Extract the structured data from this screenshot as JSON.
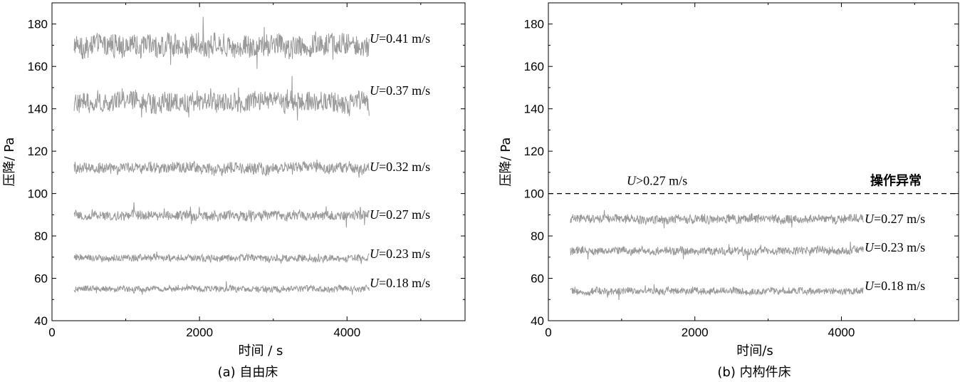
{
  "chart_data": [
    {
      "type": "line",
      "caption": "(a) 自由床",
      "xlabel": "时间 / s",
      "ylabel": "压降/ Pa",
      "xlim": [
        0,
        5600
      ],
      "ylim": [
        40,
        190
      ],
      "xticks": [
        "0",
        "2000",
        "4000"
      ],
      "yticks": [
        "40",
        "60",
        "80",
        "100",
        "120",
        "140",
        "160",
        "180"
      ],
      "series": [
        {
          "label": "=0.41 m/s",
          "x_start": 300,
          "x_end": 4300,
          "mean": 170,
          "noise": 5.0
        },
        {
          "label": "=0.37 m/s",
          "x_start": 300,
          "x_end": 4300,
          "mean": 143,
          "noise": 4.5
        },
        {
          "label": "=0.32 m/s",
          "x_start": 300,
          "x_end": 4300,
          "mean": 112,
          "noise": 2.5
        },
        {
          "label": "=0.27 m/s",
          "x_start": 300,
          "x_end": 4300,
          "mean": 89.5,
          "noise": 2.2
        },
        {
          "label": "=0.23 m/s",
          "x_start": 300,
          "x_end": 4300,
          "mean": 69.5,
          "noise": 1.6
        },
        {
          "label": "=0.18 m/s",
          "x_start": 300,
          "x_end": 4300,
          "mean": 55,
          "noise": 1.4
        }
      ],
      "velocity_symbol": "U"
    },
    {
      "type": "line",
      "caption": "(b) 内构件床",
      "xlabel": "时间/s",
      "ylabel": "压降/ Pa",
      "xlim": [
        0,
        5600
      ],
      "ylim": [
        40,
        190
      ],
      "xticks": [
        "0",
        "2000",
        "4000"
      ],
      "yticks": [
        "40",
        "60",
        "80",
        "100",
        "120",
        "140",
        "160",
        "180"
      ],
      "series": [
        {
          "label": "=0.27 m/s",
          "x_start": 300,
          "x_end": 4300,
          "mean": 88,
          "noise": 2.0
        },
        {
          "label": "=0.23 m/s",
          "x_start": 300,
          "x_end": 4300,
          "mean": 73,
          "noise": 1.8
        },
        {
          "label": "=0.18 m/s",
          "x_start": 300,
          "x_end": 4300,
          "mean": 54,
          "noise": 1.6
        }
      ],
      "velocity_symbol": "U",
      "reference_line": {
        "y": 100,
        "left_label": ">0.27 m/s",
        "right_label": "操作异常"
      }
    }
  ]
}
